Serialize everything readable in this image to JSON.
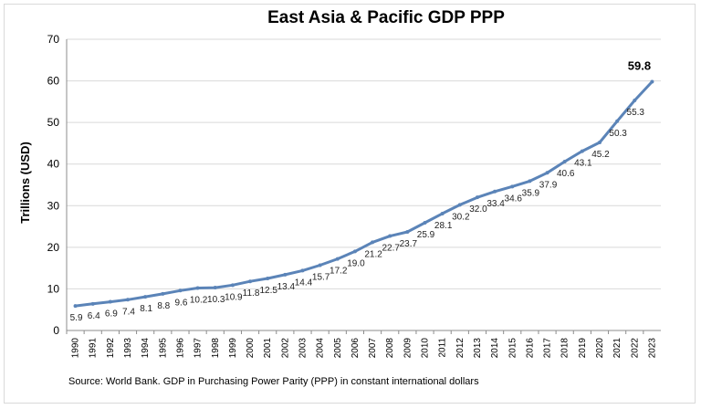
{
  "chart_data": {
    "type": "line",
    "title": "East Asia & Pacific GDP PPP",
    "xlabel": "",
    "ylabel": "Trillions (USD)",
    "ylim": [
      0,
      70
    ],
    "yticks": [
      "0",
      "10",
      "20",
      "30",
      "40",
      "50",
      "60",
      "70"
    ],
    "grid": true,
    "categories": [
      "1990",
      "1991",
      "1992",
      "1993",
      "1994",
      "1995",
      "1996",
      "1997",
      "1998",
      "1999",
      "2000",
      "2001",
      "2002",
      "2003",
      "2004",
      "2005",
      "2006",
      "2007",
      "2008",
      "2009",
      "2010",
      "2011",
      "2012",
      "2013",
      "2014",
      "2015",
      "2016",
      "2017",
      "2018",
      "2019",
      "2020",
      "2021",
      "2022",
      "2023"
    ],
    "values": [
      5.9,
      6.4,
      6.9,
      7.4,
      8.1,
      8.8,
      9.6,
      10.2,
      10.3,
      10.9,
      11.8,
      12.5,
      13.4,
      14.4,
      15.7,
      17.2,
      19.0,
      21.2,
      22.7,
      23.7,
      25.9,
      28.1,
      30.2,
      32.0,
      33.4,
      34.6,
      35.9,
      37.9,
      40.6,
      43.1,
      45.2,
      50.3,
      55.3,
      59.8
    ],
    "data_labels": [
      "5.9",
      "6.4",
      "6.9",
      "7.4",
      "8.1",
      "8.8",
      "9.6",
      "10.2",
      "10.3",
      "10.9",
      "11.8",
      "12.5",
      "13.4",
      "14.4",
      "15.7",
      "17.2",
      "19.0",
      "21.2",
      "22.7",
      "23.7",
      "25.9",
      "28.1",
      "30.2",
      "32.0",
      "33.4",
      "34.6",
      "35.9",
      "37.9",
      "40.6",
      "43.1",
      "45.2",
      "50.3",
      "55.3",
      "59.8"
    ],
    "line_color": "#5b84b8",
    "gridline_color": "#d9d9d9",
    "source": "Source:  World Bank.  GDP  in  Purchasing Power Parity (PPP)  in constant international dollars"
  }
}
